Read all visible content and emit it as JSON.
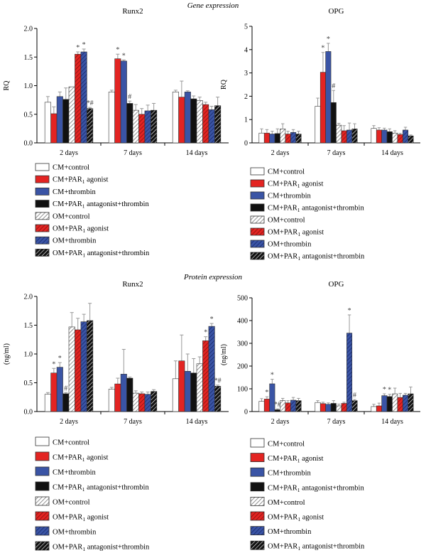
{
  "sections": {
    "gene": "Gene expression",
    "protein": "Protein expression"
  },
  "colors": {
    "red": "#e32422",
    "blue": "#3a54a5",
    "black": "#111111",
    "white": "#ffffff",
    "error": "#999999"
  },
  "legend_items": [
    {
      "label_main": "CM+control",
      "label_sub": "",
      "label_rest": "",
      "fill": "white",
      "hatch": false
    },
    {
      "label_main": "CM+PAR",
      "label_sub": "1",
      "label_rest": " agonist",
      "fill": "red",
      "hatch": false
    },
    {
      "label_main": "CM+thrombin",
      "label_sub": "",
      "label_rest": "",
      "fill": "blue",
      "hatch": false
    },
    {
      "label_main": "CM+PAR",
      "label_sub": "1",
      "label_rest": " antagonist+thrombin",
      "fill": "black",
      "hatch": false
    },
    {
      "label_main": "OM+control",
      "label_sub": "",
      "label_rest": "",
      "fill": "white",
      "hatch": true
    },
    {
      "label_main": "OM+PAR",
      "label_sub": "1",
      "label_rest": " agonist",
      "fill": "red",
      "hatch": true
    },
    {
      "label_main": "OM+thrombin",
      "label_sub": "",
      "label_rest": "",
      "fill": "blue",
      "hatch": true
    },
    {
      "label_main": "OM+PAR",
      "label_sub": "1",
      "label_rest": " antagonist+thrombin",
      "fill": "black",
      "hatch": true
    }
  ],
  "chart_data": [
    {
      "type": "bar",
      "title": "Runx2",
      "ylabel": "RQ",
      "ylim": [
        0,
        2.0
      ],
      "yticks": [
        "0.0",
        "0.5",
        "1.0",
        "1.5",
        "2.0"
      ],
      "categories": [
        "2 days",
        "7 days",
        "14 days"
      ],
      "values": [
        [
          0.71,
          0.51,
          0.81,
          0.76,
          0.98,
          1.55,
          1.59,
          0.6
        ],
        [
          0.89,
          1.47,
          1.43,
          0.69,
          0.57,
          0.5,
          0.56,
          0.57
        ],
        [
          0.89,
          0.8,
          0.89,
          0.77,
          0.74,
          0.67,
          0.58,
          0.65
        ]
      ],
      "errors": [
        [
          0.1,
          0.12,
          0.08,
          0.2,
          0.0,
          0.04,
          0.05,
          0.02
        ],
        [
          0.03,
          0.08,
          0.02,
          0.04,
          0.1,
          0.1,
          0.1,
          0.12
        ],
        [
          0.03,
          0.28,
          0.02,
          0.05,
          0.06,
          0.04,
          0.06,
          0.15
        ]
      ],
      "annotations": [
        [
          "",
          "",
          "",
          "",
          "",
          "*",
          "*",
          "*#"
        ],
        [
          "",
          "*",
          "*",
          "#",
          "",
          "",
          "",
          ""
        ],
        [
          "",
          "",
          "",
          "",
          "",
          "",
          "",
          ""
        ]
      ]
    },
    {
      "type": "bar",
      "title": "OPG",
      "ylabel": "RQ",
      "ylim": [
        0,
        5
      ],
      "yticks": [
        "0",
        "1",
        "2",
        "3",
        "4",
        "5"
      ],
      "categories": [
        "2 days",
        "7 days",
        "14 days"
      ],
      "values": [
        [
          0.42,
          0.42,
          0.38,
          0.4,
          0.6,
          0.38,
          0.45,
          0.38
        ],
        [
          1.57,
          3.03,
          3.92,
          1.73,
          0.76,
          0.52,
          0.55,
          0.6
        ],
        [
          0.62,
          0.55,
          0.55,
          0.48,
          0.42,
          0.36,
          0.55,
          0.3
        ]
      ],
      "errors": [
        [
          0.18,
          0.15,
          0.12,
          0.2,
          0.22,
          0.12,
          0.12,
          0.12
        ],
        [
          0.35,
          0.85,
          0.35,
          0.52,
          0.08,
          0.22,
          0.3,
          0.22
        ],
        [
          0.12,
          0.1,
          0.08,
          0.12,
          0.1,
          0.05,
          0.12,
          0.04
        ]
      ],
      "annotations": [
        [
          "",
          "",
          "",
          "",
          "",
          "",
          "",
          ""
        ],
        [
          "",
          "*",
          "*",
          "#",
          "",
          "",
          "",
          ""
        ],
        [
          "",
          "",
          "",
          "",
          "",
          "",
          "",
          ""
        ]
      ]
    },
    {
      "type": "bar",
      "title": "Runx2",
      "ylabel": "(ng/ml)",
      "ylim": [
        0,
        2.0
      ],
      "yticks": [
        "0.0",
        "0.5",
        "1.0",
        "1.5",
        "2.0"
      ],
      "categories": [
        "2 days",
        "7 days",
        "14 days"
      ],
      "values": [
        [
          0.3,
          0.67,
          0.77,
          0.31,
          1.47,
          1.42,
          1.56,
          1.58
        ],
        [
          0.39,
          0.48,
          0.65,
          0.58,
          0.32,
          0.31,
          0.3,
          0.35
        ],
        [
          0.57,
          0.88,
          0.7,
          0.67,
          0.83,
          1.23,
          1.48,
          0.44
        ]
      ],
      "errors": [
        [
          0.03,
          0.08,
          0.08,
          0.02,
          0.25,
          0.2,
          0.13,
          0.3
        ],
        [
          0.03,
          0.1,
          0.43,
          0.02,
          0.04,
          0.03,
          0.04,
          0.03
        ],
        [
          0.31,
          0.45,
          0.3,
          0.25,
          0.12,
          0.07,
          0.05,
          0.02
        ]
      ],
      "annotations": [
        [
          "",
          "*",
          "*",
          "#",
          "",
          "",
          "",
          ""
        ],
        [
          "",
          "",
          "",
          "",
          "",
          "",
          "",
          ""
        ],
        [
          "",
          "",
          "",
          "",
          "",
          "*",
          "*",
          "*#"
        ]
      ]
    },
    {
      "type": "bar",
      "title": "OPG",
      "ylabel": "(ng/ml)",
      "ylim": [
        0,
        500
      ],
      "yticks": [
        "0",
        "100",
        "200",
        "300",
        "400",
        "500"
      ],
      "categories": [
        "2 days",
        "7 days",
        "14 days"
      ],
      "values": [
        [
          45,
          55,
          122,
          8,
          48,
          38,
          50,
          48
        ],
        [
          40,
          35,
          32,
          36,
          25,
          36,
          345,
          48
        ],
        [
          22,
          25,
          70,
          66,
          78,
          62,
          72,
          78
        ]
      ],
      "errors": [
        [
          12,
          10,
          20,
          4,
          10,
          10,
          12,
          10
        ],
        [
          8,
          6,
          6,
          12,
          8,
          5,
          80,
          5
        ],
        [
          10,
          12,
          8,
          10,
          25,
          18,
          8,
          30
        ]
      ],
      "annotations": [
        [
          "",
          "*",
          "*",
          "*#",
          "",
          "",
          "",
          ""
        ],
        [
          "",
          "",
          "",
          "",
          "",
          "",
          "*",
          "#"
        ],
        [
          "",
          "",
          "*",
          "*",
          "",
          "",
          "",
          ""
        ]
      ]
    }
  ]
}
